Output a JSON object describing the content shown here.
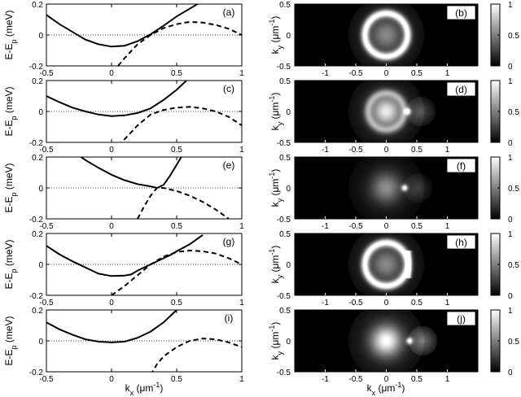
{
  "chart_data": {
    "type": "line",
    "left_panels": [
      {
        "label": "(a)",
        "ylabel": "E-E_p (meV)",
        "series": [
          {
            "style": "solid",
            "x": [
              -0.5,
              -0.4,
              -0.3,
              -0.2,
              -0.1,
              0,
              0.1,
              0.2,
              0.3,
              0.4,
              0.5,
              0.6,
              0.7
            ],
            "y": [
              0.13,
              0.07,
              0.02,
              -0.03,
              -0.06,
              -0.075,
              -0.07,
              -0.04,
              0.005,
              0.06,
              0.12,
              0.17,
              0.22
            ]
          },
          {
            "style": "dashed",
            "x": [
              0.05,
              0.1,
              0.2,
              0.3,
              0.4,
              0.5,
              0.6,
              0.7,
              0.8,
              0.9,
              1.0
            ],
            "y": [
              -0.2,
              -0.15,
              -0.06,
              0.0,
              0.045,
              0.07,
              0.085,
              0.08,
              0.065,
              0.04,
              0.0
            ]
          }
        ]
      },
      {
        "label": "(c)",
        "ylabel": "E-E_p (meV)",
        "series": [
          {
            "style": "solid",
            "x": [
              -0.5,
              -0.4,
              -0.3,
              -0.2,
              -0.1,
              0,
              0.1,
              0.2,
              0.3,
              0.4,
              0.5,
              0.6
            ],
            "y": [
              0.1,
              0.06,
              0.025,
              0.0,
              -0.02,
              -0.03,
              -0.025,
              -0.01,
              0.02,
              0.075,
              0.14,
              0.22
            ]
          },
          {
            "style": "dashed",
            "x": [
              0.05,
              0.1,
              0.2,
              0.3,
              0.4,
              0.5,
              0.6,
              0.7,
              0.8,
              0.9,
              1.0
            ],
            "y": [
              -0.22,
              -0.18,
              -0.09,
              -0.02,
              0.01,
              0.025,
              0.03,
              0.02,
              0.0,
              -0.035,
              -0.09
            ]
          }
        ]
      },
      {
        "label": "(e)",
        "ylabel": "E-E_p (meV)",
        "series": [
          {
            "style": "solid",
            "x": [
              -0.25,
              -0.2,
              -0.1,
              0,
              0.1,
              0.2,
              0.3,
              0.35,
              0.4,
              0.45,
              0.5,
              0.55
            ],
            "y": [
              0.21,
              0.18,
              0.13,
              0.085,
              0.05,
              0.025,
              0.01,
              0.0,
              0.02,
              0.08,
              0.15,
              0.22
            ]
          },
          {
            "style": "dashed",
            "x": [
              0.2,
              0.25,
              0.3,
              0.35,
              0.4,
              0.5,
              0.6,
              0.7,
              0.8,
              0.9
            ],
            "y": [
              -0.2,
              -0.12,
              -0.05,
              0.0,
              0.0,
              -0.02,
              -0.05,
              -0.09,
              -0.14,
              -0.2
            ]
          }
        ]
      },
      {
        "label": "(g)",
        "ylabel": "E-E_p (meV)",
        "series": [
          {
            "style": "solid",
            "x": [
              -0.5,
              -0.4,
              -0.3,
              -0.2,
              -0.1,
              0,
              0.1,
              0.15,
              0.2,
              0.3,
              0.4,
              0.45,
              0.5,
              0.6,
              0.7
            ],
            "y": [
              0.12,
              0.065,
              0.02,
              -0.02,
              -0.06,
              -0.075,
              -0.072,
              -0.065,
              -0.04,
              0.0,
              0.04,
              0.06,
              0.085,
              0.13,
              0.19
            ]
          },
          {
            "style": "dashed",
            "x": [
              0.0,
              0.1,
              0.2,
              0.3,
              0.4,
              0.5,
              0.6,
              0.7,
              0.8,
              0.9,
              1.0
            ],
            "y": [
              -0.2,
              -0.14,
              -0.07,
              0.0,
              0.05,
              0.08,
              0.09,
              0.085,
              0.07,
              0.04,
              0.0
            ]
          }
        ]
      },
      {
        "label": "(i)",
        "ylabel": "E-E_p (meV)",
        "series": [
          {
            "style": "solid",
            "x": [
              -0.5,
              -0.4,
              -0.3,
              -0.2,
              -0.1,
              0,
              0.1,
              0.2,
              0.3,
              0.4,
              0.5
            ],
            "y": [
              0.12,
              0.075,
              0.04,
              0.01,
              -0.005,
              -0.01,
              -0.005,
              0.02,
              0.06,
              0.12,
              0.2
            ]
          },
          {
            "style": "dashed",
            "x": [
              0.3,
              0.35,
              0.4,
              0.5,
              0.6,
              0.7,
              0.8,
              0.9,
              1.0
            ],
            "y": [
              -0.22,
              -0.15,
              -0.1,
              -0.04,
              0.0,
              0.015,
              0.01,
              -0.01,
              -0.04
            ]
          }
        ]
      }
    ],
    "right_panels": [
      {
        "label": "(b)",
        "ylabel": "k_y (μm⁻¹)",
        "features": {
          "ring_radius": 0.35,
          "ring_strength": 0.95,
          "core_strength": 0.35,
          "hotspot_x": null,
          "lobe": 0.0,
          "bar": false,
          "outer": 0.2
        }
      },
      {
        "label": "(d)",
        "ylabel": "k_y (μm⁻¹)",
        "features": {
          "ring_radius": 0.3,
          "ring_strength": 0.45,
          "core_strength": 0.75,
          "hotspot_x": 0.35,
          "lobe": 0.3,
          "bar": false,
          "outer": 0.18
        }
      },
      {
        "label": "(f)",
        "ylabel": "k_y (μm⁻¹)",
        "features": {
          "ring_radius": 0.0,
          "ring_strength": 0.0,
          "core_strength": 0.45,
          "hotspot_x": 0.3,
          "lobe": 0.2,
          "bar": false,
          "outer": 0.12
        }
      },
      {
        "label": "(h)",
        "ylabel": "k_y (μm⁻¹)",
        "features": {
          "ring_radius": 0.35,
          "ring_strength": 0.95,
          "core_strength": 0.35,
          "hotspot_x": null,
          "lobe": 0.0,
          "bar": true,
          "outer": 0.2
        }
      },
      {
        "label": "(j)",
        "ylabel": "k_y (μm⁻¹)",
        "features": {
          "ring_radius": 0.0,
          "ring_strength": 0.0,
          "core_strength": 0.85,
          "hotspot_x": 0.38,
          "lobe": 0.45,
          "bar": false,
          "outer": 0.18
        }
      }
    ],
    "left_axes": {
      "xlim": [
        -0.5,
        1
      ],
      "ylim": [
        -0.2,
        0.2
      ],
      "xticks": [
        "-0.5",
        "0",
        "0.5",
        "1"
      ],
      "yticks": [
        "0.2",
        "0",
        "-0.2"
      ],
      "xlabel": "k_x (μm⁻¹)"
    },
    "right_axes": {
      "xlim": [
        -1.5,
        1.5
      ],
      "ylim": [
        -0.5,
        0.5
      ],
      "xticks": [
        "-1",
        "-0.5",
        "0",
        "0.5",
        "1"
      ],
      "yticks": [
        "0.5",
        "0",
        "-0.5"
      ],
      "xlabel": "k_x (μm⁻¹)"
    },
    "colorbar": {
      "ticks": [
        "1",
        "0.5",
        "0"
      ],
      "colormap": "gray"
    }
  }
}
